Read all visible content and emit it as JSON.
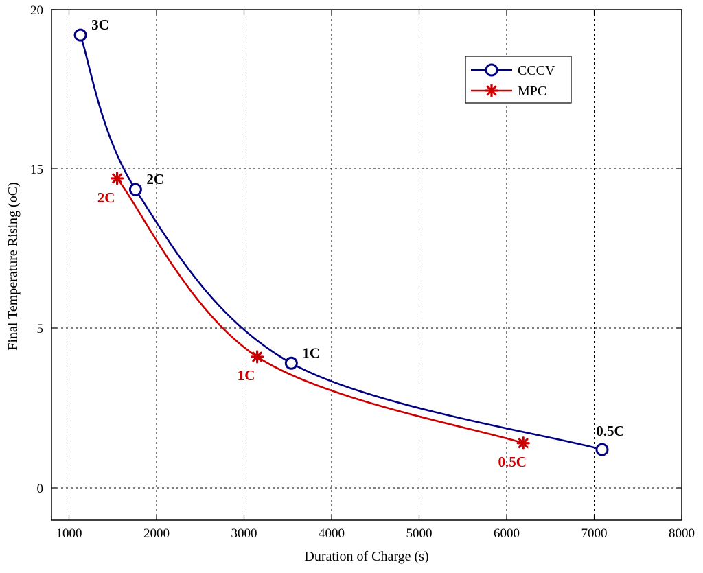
{
  "chart_data": {
    "type": "line",
    "title": "",
    "xlabel": "Duration of Charge (s)",
    "ylabel": "Final Temperature Rising (oC)",
    "xlim": [
      800,
      8000
    ],
    "ylim": [
      -2,
      20
    ],
    "x_ticks": [
      1000,
      2000,
      3000,
      4000,
      5000,
      6000,
      7000,
      8000
    ],
    "y_ticks": [
      0,
      5,
      15,
      20
    ],
    "grid": true,
    "legend_position": "top-right",
    "series": [
      {
        "name": "CCCV",
        "color": "#000080",
        "marker": "circle",
        "points": [
          {
            "x": 1130,
            "y": 19.2,
            "label": "3C"
          },
          {
            "x": 1760,
            "y": 13.7,
            "label": "2C"
          },
          {
            "x": 3540,
            "y": 3.9,
            "label": "1C"
          },
          {
            "x": 7090,
            "y": 1.2,
            "label": "0.5C"
          }
        ]
      },
      {
        "name": "MPC",
        "color": "#cc0000",
        "marker": "asterisk",
        "points": [
          {
            "x": 1550,
            "y": 14.4,
            "label": "2C"
          },
          {
            "x": 3150,
            "y": 4.1,
            "label": "1C"
          },
          {
            "x": 6190,
            "y": 1.4,
            "label": "0.5C"
          }
        ]
      }
    ]
  }
}
